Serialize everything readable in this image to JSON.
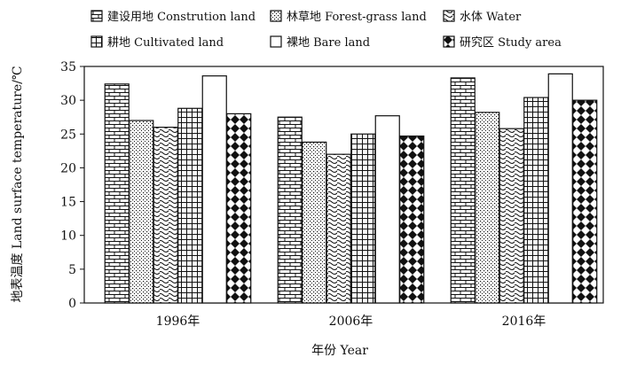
{
  "chart_data": {
    "type": "bar",
    "title": "",
    "xlabel": "年份 Year",
    "ylabel": "地表温度 Land surface temperature/℃",
    "ylim": [
      0,
      35
    ],
    "yticks": [
      0,
      5,
      10,
      15,
      20,
      25,
      30,
      35
    ],
    "grid": false,
    "legend_position": "top",
    "categories": [
      "1996年",
      "2006年",
      "2016年"
    ],
    "series": [
      {
        "name": "建设用地 Constrution land",
        "pattern": "brick",
        "values": [
          32.4,
          27.5,
          33.3
        ]
      },
      {
        "name": "林草地 Forest-grass land",
        "pattern": "dots",
        "values": [
          27.0,
          23.8,
          28.2
        ]
      },
      {
        "name": "水体 Water",
        "pattern": "waves",
        "values": [
          26.0,
          22.0,
          25.8
        ]
      },
      {
        "name": "耕地 Cultivated land",
        "pattern": "grid",
        "values": [
          28.8,
          25.0,
          30.4
        ]
      },
      {
        "name": "裸地 Bare land",
        "pattern": "blank",
        "values": [
          33.6,
          27.7,
          33.9
        ]
      },
      {
        "name": "研究区 Study area",
        "pattern": "diamond",
        "values": [
          28.0,
          24.7,
          30.0
        ]
      }
    ]
  }
}
